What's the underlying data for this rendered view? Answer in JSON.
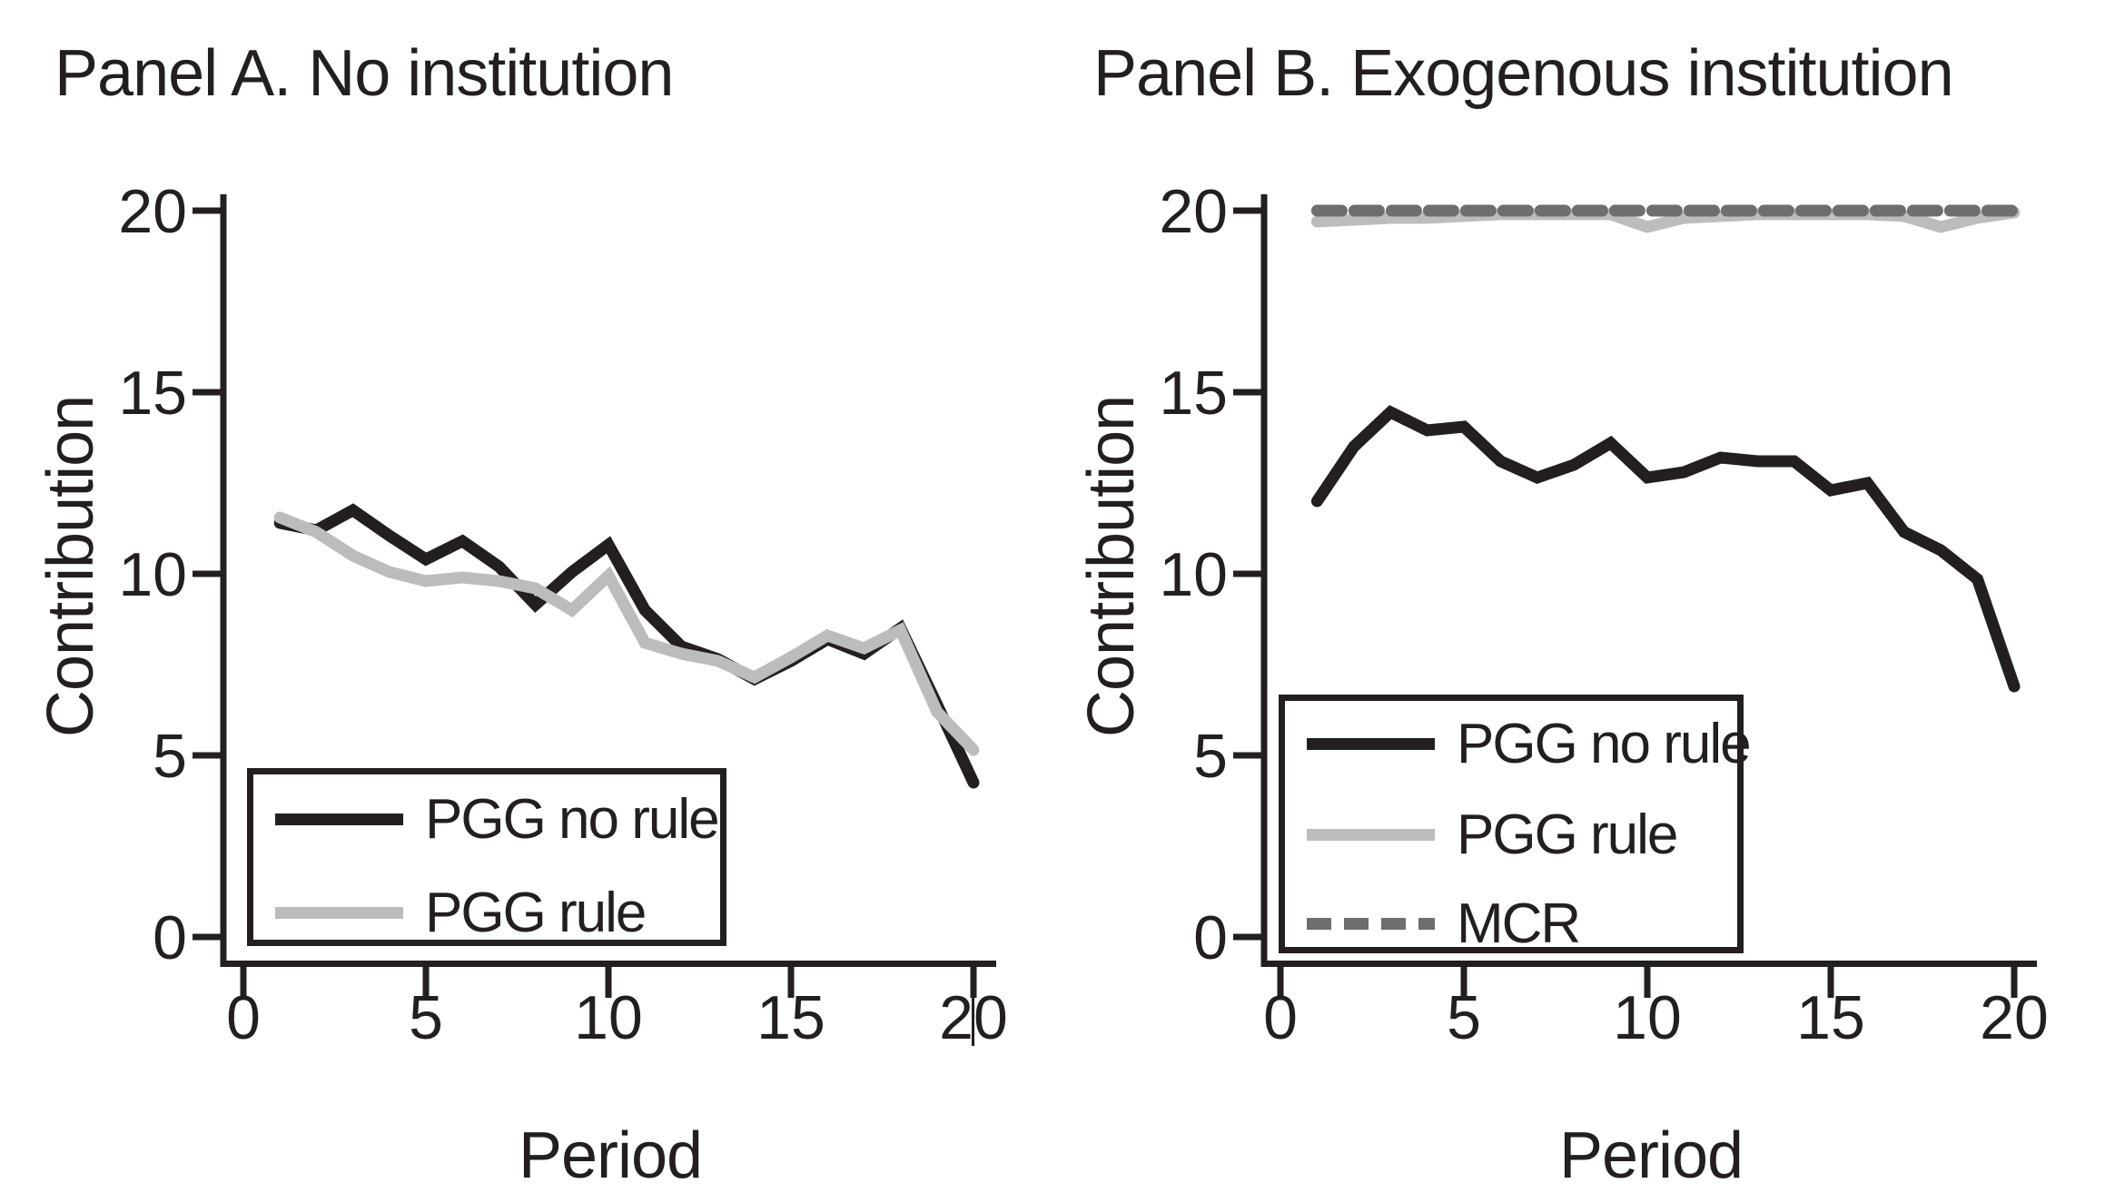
{
  "chart_data": [
    {
      "type": "line",
      "panel": "A",
      "title": "Panel A. No institution",
      "xlabel": "Period",
      "ylabel": "Contribution",
      "xlim": [
        0,
        20
      ],
      "ylim": [
        0,
        20
      ],
      "xticks": [
        0,
        5,
        10,
        15,
        20
      ],
      "yticks": [
        0,
        5,
        10,
        15,
        20
      ],
      "grid": false,
      "x": [
        1,
        2,
        3,
        4,
        5,
        6,
        7,
        8,
        9,
        10,
        11,
        12,
        13,
        14,
        15,
        16,
        17,
        18,
        19,
        20
      ],
      "series": [
        {
          "name": "PGG no rule",
          "color": "#231f20",
          "dash": "solid",
          "values": [
            11.4,
            11.2,
            11.75,
            11.05,
            10.4,
            10.9,
            10.2,
            9.15,
            10.05,
            10.8,
            9.0,
            8.0,
            7.65,
            7.1,
            7.6,
            8.2,
            7.8,
            8.5,
            6.4,
            4.25
          ]
        },
        {
          "name": "PGG rule",
          "color": "#bcbcbc",
          "dash": "solid",
          "values": [
            11.55,
            11.15,
            10.5,
            10.05,
            9.8,
            9.9,
            9.8,
            9.6,
            9.0,
            9.95,
            8.1,
            7.8,
            7.6,
            7.15,
            7.7,
            8.3,
            7.95,
            8.45,
            6.2,
            5.15
          ]
        }
      ],
      "legend": {
        "position": "bottom-left",
        "items": [
          "PGG no rule",
          "PGG rule"
        ]
      }
    },
    {
      "type": "line",
      "panel": "B",
      "title": "Panel B. Exogenous institution",
      "xlabel": "Period",
      "ylabel": "Contribution",
      "xlim": [
        0,
        20
      ],
      "ylim": [
        0,
        20
      ],
      "xticks": [
        0,
        5,
        10,
        15,
        20
      ],
      "yticks": [
        0,
        5,
        10,
        15,
        20
      ],
      "grid": false,
      "x": [
        1,
        2,
        3,
        4,
        5,
        6,
        7,
        8,
        9,
        10,
        11,
        12,
        13,
        14,
        15,
        16,
        17,
        18,
        19,
        20
      ],
      "series": [
        {
          "name": "PGG no rule",
          "color": "#231f20",
          "dash": "solid",
          "values": [
            12.0,
            13.5,
            14.45,
            13.95,
            14.05,
            13.1,
            12.65,
            13.0,
            13.6,
            12.65,
            12.8,
            13.2,
            13.1,
            13.1,
            12.3,
            12.5,
            11.15,
            10.65,
            9.85,
            6.9
          ]
        },
        {
          "name": "PGG rule",
          "color": "#bcbcbc",
          "dash": "solid",
          "values": [
            19.7,
            19.75,
            19.8,
            19.8,
            19.85,
            19.9,
            19.9,
            19.9,
            19.9,
            19.55,
            19.8,
            19.85,
            19.9,
            19.9,
            19.9,
            19.9,
            19.85,
            19.55,
            19.8,
            19.95
          ]
        },
        {
          "name": "MCR",
          "color": "#6e6e6e",
          "dash": "dashed",
          "values": [
            20,
            20,
            20,
            20,
            20,
            20,
            20,
            20,
            20,
            20,
            20,
            20,
            20,
            20,
            20,
            20,
            20,
            20,
            20,
            20
          ]
        }
      ],
      "legend": {
        "position": "bottom-left",
        "items": [
          "PGG no rule",
          "PGG rule",
          "MCR"
        ]
      }
    }
  ],
  "colors": {
    "line_black": "#231f20",
    "line_light_grey": "#bcbcbc",
    "line_dark_grey": "#6e6e6e",
    "text": "#231f20",
    "background": "#ffffff"
  }
}
